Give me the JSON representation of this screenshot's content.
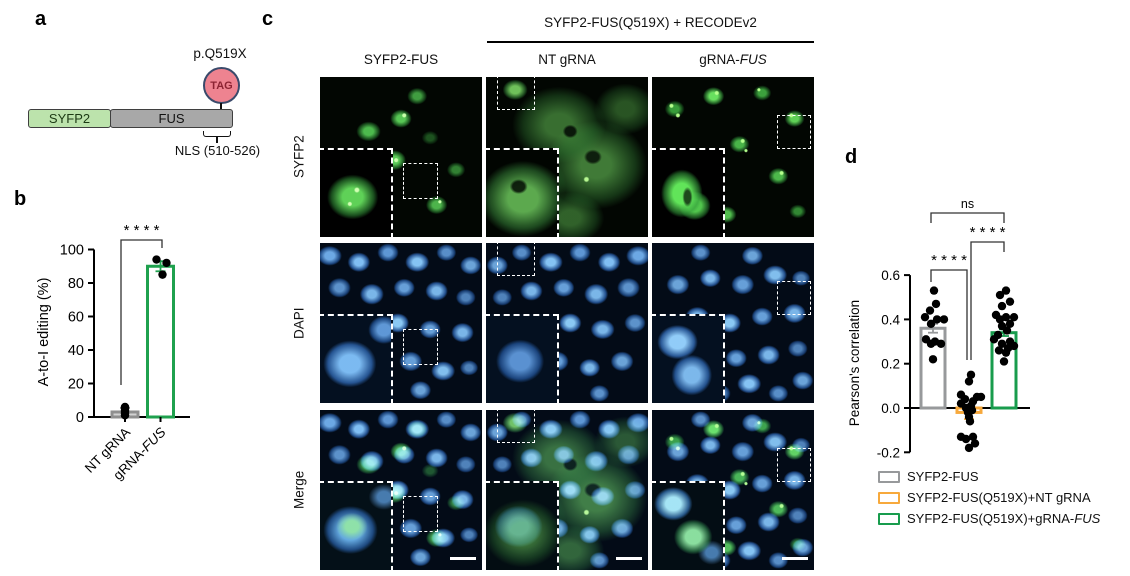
{
  "figure": {
    "panel_a": {
      "label": "a",
      "mutation_label": "p.Q519X",
      "codon_label": "TAG",
      "domain_1": "SYFP2",
      "domain_2": "FUS",
      "nls_label": "NLS (510-526)"
    },
    "panel_b": {
      "label": "b"
    },
    "panel_c": {
      "label": "c",
      "group_header": "SYFP2-FUS(Q519X) + RECODEv2",
      "columns": [
        {
          "pre": "SYFP2-FUS",
          "italic": ""
        },
        {
          "pre": "NT gRNA",
          "italic": ""
        },
        {
          "pre": "gRNA-",
          "italic": "FUS"
        }
      ],
      "rows": [
        "SYFP2",
        "DAPI",
        "Merge"
      ]
    },
    "panel_d": {
      "label": "d",
      "legend": [
        {
          "pre": "SYFP2-FUS",
          "italic": "",
          "color": "#97999B"
        },
        {
          "pre": "SYFP2-FUS(Q519X)+NT gRNA",
          "italic": "",
          "color": "#F7A93C"
        },
        {
          "pre": "SYFP2-FUS(Q519X)+gRNA-",
          "italic": "FUS",
          "color": "#189C4D"
        }
      ]
    }
  },
  "chart_data": [
    {
      "type": "bar",
      "panel": "b",
      "title": "",
      "categories": [
        "NT gRNA",
        "gRNA-FUS"
      ],
      "categories_rich": [
        {
          "pre": "NT gRNA",
          "italic": ""
        },
        {
          "pre": "gRNA-",
          "italic": "FUS"
        }
      ],
      "values": [
        3,
        90
      ],
      "errors": [
        2.5,
        3
      ],
      "points": [
        [
          1,
          2,
          3,
          4,
          5,
          6
        ],
        [
          94,
          92,
          85
        ]
      ],
      "bar_colors": [
        "#8F8F8F",
        "#1FA14E"
      ],
      "bar_fills": [
        "#D2D2D2",
        "#FFFFFF"
      ],
      "ylabel": "A-to-I editing (%)",
      "ylim": [
        0,
        100
      ],
      "yticks": [
        0,
        20,
        40,
        60,
        80,
        100
      ],
      "grid": false,
      "legend_position": "none",
      "significance": [
        {
          "between": [
            0,
            1
          ],
          "label": "****"
        }
      ]
    },
    {
      "type": "bar-scatter",
      "panel": "d",
      "title": "",
      "categories": [
        "SYFP2-FUS",
        "SYFP2-FUS(Q519X)+NT gRNA",
        "SYFP2-FUS(Q519X)+gRNA-FUS"
      ],
      "values": [
        0.36,
        -0.02,
        0.34
      ],
      "errors": [
        0.02,
        0.03,
        0.015
      ],
      "points": [
        [
          0.53,
          0.47,
          0.44,
          0.41,
          0.4,
          0.4,
          0.38,
          0.31,
          0.3,
          0.29,
          0.29,
          0.22
        ],
        [
          0.15,
          0.12,
          0.06,
          0.05,
          0.05,
          0.04,
          0.03,
          0.02,
          0.01,
          0.0,
          -0.01,
          -0.02,
          -0.04,
          -0.06,
          -0.13,
          -0.13,
          -0.14,
          -0.16,
          -0.18
        ],
        [
          0.53,
          0.51,
          0.48,
          0.46,
          0.42,
          0.41,
          0.41,
          0.4,
          0.38,
          0.37,
          0.35,
          0.33,
          0.31,
          0.3,
          0.29,
          0.28,
          0.27,
          0.26,
          0.25,
          0.21
        ]
      ],
      "bar_colors": [
        "#97999B",
        "#F7A93C",
        "#189C4D"
      ],
      "bar_fills": [
        "#FFFFFF",
        "#FFFFFF",
        "#FFFFFF"
      ],
      "ylabel": "Pearson's correlation",
      "ylim": [
        -0.2,
        0.6
      ],
      "yticks": [
        -0.2,
        0.0,
        0.2,
        0.4,
        0.6
      ],
      "grid": false,
      "legend_position": "below",
      "significance": [
        {
          "between": [
            0,
            1
          ],
          "label": "****"
        },
        {
          "between": [
            1,
            2
          ],
          "label": "****"
        },
        {
          "between": [
            0,
            2
          ],
          "label": "ns"
        }
      ]
    }
  ]
}
